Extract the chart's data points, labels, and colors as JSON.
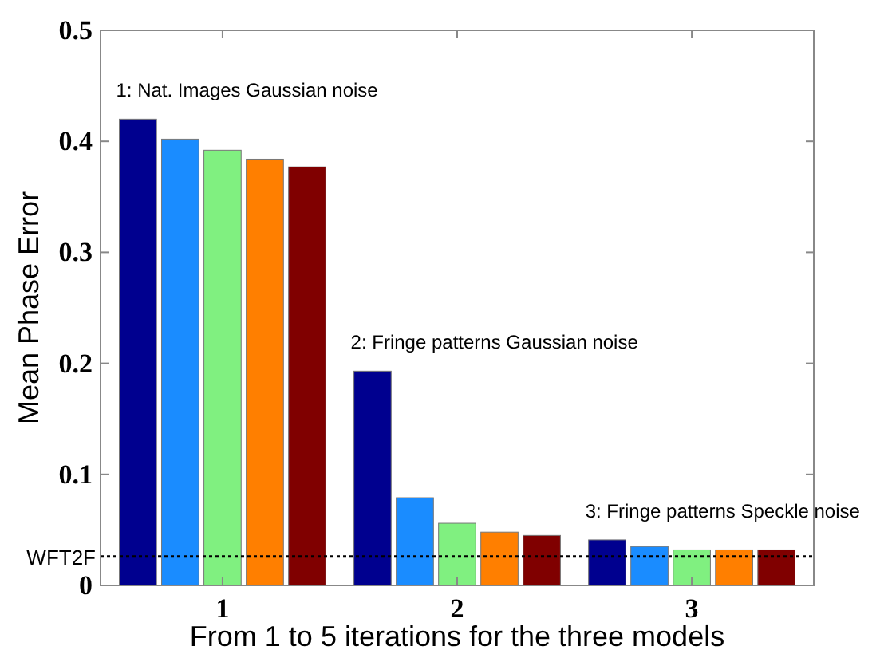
{
  "chart_data": {
    "type": "bar",
    "categories": [
      "1",
      "2",
      "3"
    ],
    "xlabel": "From 1 to 5 iterations for the three models",
    "ylabel": "Mean Phase Error",
    "series": [
      {
        "color": "#00008f",
        "values": [
          0.42,
          0.193,
          0.041
        ]
      },
      {
        "color": "#1a8cff",
        "values": [
          0.402,
          0.079,
          0.035
        ]
      },
      {
        "color": "#80f080",
        "values": [
          0.392,
          0.056,
          0.032
        ]
      },
      {
        "color": "#ff7f00",
        "values": [
          0.384,
          0.048,
          0.032
        ]
      },
      {
        "color": "#800000",
        "values": [
          0.377,
          0.045,
          0.032
        ]
      }
    ],
    "ylim": [
      0,
      0.5
    ],
    "yticks": [
      0,
      0.1,
      0.2,
      0.3,
      0.4,
      0.5
    ],
    "grid": false,
    "ref_lines": [
      {
        "axis": "y",
        "value": 0.026,
        "label": "WFT2F",
        "line_style": "dotted",
        "color": "#000000"
      }
    ],
    "annotations": [
      "1: Nat. Images Gaussian noise",
      "2: Fringe patterns Gaussian noise",
      "3: Fringe patterns Speckle noise"
    ]
  }
}
